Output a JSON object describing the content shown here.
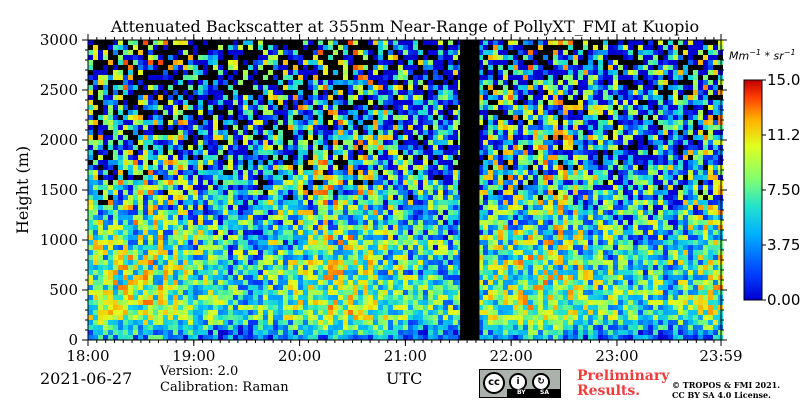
{
  "chart_data": {
    "type": "heatmap",
    "title": "Attenuated Backscatter at 355nm Near-Range of PollyXT_FMI at Kuopio",
    "ylabel": "Height (m)",
    "xlabel": "UTC",
    "x_range": [
      "18:00",
      "23:59"
    ],
    "x_ticks": [
      "18:00",
      "19:00",
      "20:00",
      "21:00",
      "22:00",
      "23:00",
      "23:59"
    ],
    "ylim": [
      0,
      3000
    ],
    "y_ticks": [
      "0",
      "500",
      "1000",
      "1500",
      "2000",
      "2500",
      "3000"
    ],
    "data_gap": [
      "21:31",
      "21:42"
    ],
    "colorbar": {
      "unit": "Mm⁻¹ * sr⁻¹",
      "range": [
        0,
        15
      ],
      "tick_labels": [
        "0.00",
        "3.75",
        "7.50",
        "11.2",
        "15.0"
      ],
      "colormap": "jet"
    }
  },
  "footer": {
    "date": "2021-06-27",
    "version": "Version: 2.0",
    "calibration": "Calibration: Raman",
    "preliminary": "Preliminary Results.",
    "copyright": "© TROPOS & FMI 2021. CC BY SA 4.0 License.",
    "license_badge": [
      "cc",
      "BY",
      "SA"
    ]
  }
}
